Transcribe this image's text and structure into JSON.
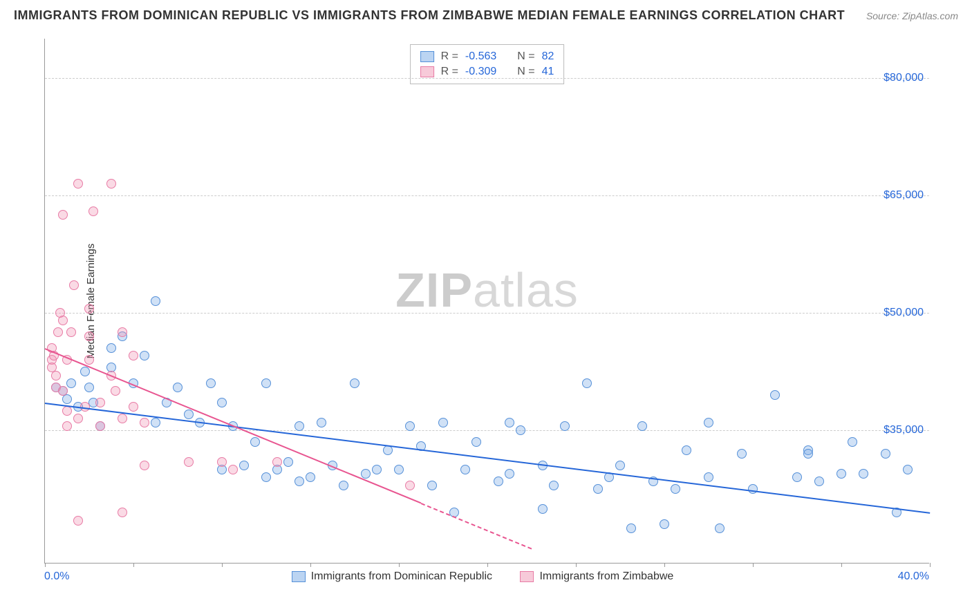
{
  "header": {
    "title": "IMMIGRANTS FROM DOMINICAN REPUBLIC VS IMMIGRANTS FROM ZIMBABWE MEDIAN FEMALE EARNINGS CORRELATION CHART",
    "source_prefix": "Source: ",
    "source": "ZipAtlas.com"
  },
  "watermark": {
    "part1": "ZIP",
    "part2": "atlas"
  },
  "chart": {
    "type": "scatter",
    "ylabel": "Median Female Earnings",
    "xlim": [
      0,
      40
    ],
    "ylim": [
      18000,
      85000
    ],
    "x_tick_labels": [
      "0.0%",
      "40.0%"
    ],
    "x_tick_marks": [
      0,
      4,
      8,
      12,
      16,
      20,
      24,
      28,
      32,
      36,
      40
    ],
    "y_ticks": [
      35000,
      50000,
      65000,
      80000
    ],
    "y_tick_labels": [
      "$35,000",
      "$50,000",
      "$65,000",
      "$80,000"
    ],
    "grid_color": "#cccccc",
    "axis_color": "#999999",
    "background_color": "#ffffff",
    "label_color": "#2566d8",
    "point_radius": 7,
    "point_fill_opacity": 0.35,
    "series": [
      {
        "name": "Immigrants from Dominican Republic",
        "color": "#5590d8",
        "fill": "#78aae6",
        "line_color": "#2566d8",
        "correlation": {
          "r": "-0.563",
          "n": "82"
        },
        "trend": {
          "x1": 0,
          "y1": 38500,
          "x2": 40,
          "y2": 24500,
          "extrapolated_from_x": null
        },
        "points": [
          [
            0.5,
            40500
          ],
          [
            0.8,
            40000
          ],
          [
            1.2,
            41000
          ],
          [
            1.0,
            39000
          ],
          [
            1.5,
            38000
          ],
          [
            1.8,
            42500
          ],
          [
            2.0,
            40500
          ],
          [
            2.2,
            38500
          ],
          [
            2.5,
            35500
          ],
          [
            3.0,
            43000
          ],
          [
            3.0,
            45500
          ],
          [
            3.5,
            47000
          ],
          [
            4.0,
            41000
          ],
          [
            4.5,
            44500
          ],
          [
            5.0,
            51500
          ],
          [
            5.0,
            36000
          ],
          [
            5.5,
            38500
          ],
          [
            6.0,
            40500
          ],
          [
            6.5,
            37000
          ],
          [
            7.0,
            36000
          ],
          [
            7.5,
            41000
          ],
          [
            8.0,
            38500
          ],
          [
            8.0,
            30000
          ],
          [
            8.5,
            35500
          ],
          [
            9.0,
            30500
          ],
          [
            9.5,
            33500
          ],
          [
            10.0,
            41000
          ],
          [
            10.0,
            29000
          ],
          [
            10.5,
            30000
          ],
          [
            11.0,
            31000
          ],
          [
            11.5,
            35500
          ],
          [
            11.5,
            28500
          ],
          [
            12.0,
            29000
          ],
          [
            12.5,
            36000
          ],
          [
            13.0,
            30500
          ],
          [
            13.5,
            28000
          ],
          [
            14.0,
            41000
          ],
          [
            14.5,
            29500
          ],
          [
            15.0,
            30000
          ],
          [
            15.5,
            32500
          ],
          [
            16.0,
            30000
          ],
          [
            16.5,
            35500
          ],
          [
            17.0,
            33000
          ],
          [
            17.5,
            28000
          ],
          [
            18.0,
            36000
          ],
          [
            18.5,
            24500
          ],
          [
            19.0,
            30000
          ],
          [
            19.5,
            33500
          ],
          [
            20.5,
            28500
          ],
          [
            21.0,
            29500
          ],
          [
            21.0,
            36000
          ],
          [
            21.5,
            35000
          ],
          [
            22.5,
            30500
          ],
          [
            22.5,
            25000
          ],
          [
            23.0,
            28000
          ],
          [
            23.5,
            35500
          ],
          [
            24.5,
            41000
          ],
          [
            25.0,
            27500
          ],
          [
            25.5,
            29000
          ],
          [
            26.0,
            30500
          ],
          [
            26.5,
            22500
          ],
          [
            27.0,
            35500
          ],
          [
            27.5,
            28500
          ],
          [
            28.0,
            23000
          ],
          [
            28.5,
            27500
          ],
          [
            29.0,
            32500
          ],
          [
            30.0,
            36000
          ],
          [
            30.0,
            29000
          ],
          [
            30.5,
            22500
          ],
          [
            31.5,
            32000
          ],
          [
            32.0,
            27500
          ],
          [
            33.0,
            39500
          ],
          [
            34.0,
            29000
          ],
          [
            34.5,
            32500
          ],
          [
            34.5,
            32000
          ],
          [
            35.0,
            28500
          ],
          [
            36.0,
            29500
          ],
          [
            36.5,
            33500
          ],
          [
            37.0,
            29500
          ],
          [
            38.0,
            32000
          ],
          [
            38.5,
            24500
          ],
          [
            39.0,
            30000
          ]
        ]
      },
      {
        "name": "Immigrants from Zimbabwe",
        "color": "#e87ba5",
        "fill": "#f096b4",
        "line_color": "#e85590",
        "correlation": {
          "r": "-0.309",
          "n": "41"
        },
        "trend": {
          "x1": 0,
          "y1": 45500,
          "x2": 22,
          "y2": 20000,
          "extrapolated_from_x": 17
        },
        "points": [
          [
            0.3,
            44000
          ],
          [
            0.3,
            43000
          ],
          [
            0.3,
            45500
          ],
          [
            0.4,
            44500
          ],
          [
            0.5,
            40500
          ],
          [
            0.5,
            42000
          ],
          [
            0.6,
            47500
          ],
          [
            0.7,
            50000
          ],
          [
            0.8,
            49000
          ],
          [
            0.8,
            40000
          ],
          [
            0.8,
            62500
          ],
          [
            1.0,
            44000
          ],
          [
            1.0,
            37500
          ],
          [
            1.0,
            35500
          ],
          [
            1.2,
            47500
          ],
          [
            1.3,
            53500
          ],
          [
            1.5,
            23500
          ],
          [
            1.5,
            36500
          ],
          [
            1.5,
            66500
          ],
          [
            1.8,
            38000
          ],
          [
            2.0,
            44000
          ],
          [
            2.0,
            47000
          ],
          [
            2.0,
            50500
          ],
          [
            2.2,
            63000
          ],
          [
            2.5,
            38500
          ],
          [
            2.5,
            35500
          ],
          [
            3.0,
            42000
          ],
          [
            3.0,
            66500
          ],
          [
            3.2,
            40000
          ],
          [
            3.5,
            47500
          ],
          [
            3.5,
            36500
          ],
          [
            3.5,
            24500
          ],
          [
            4.0,
            38000
          ],
          [
            4.0,
            44500
          ],
          [
            4.5,
            36000
          ],
          [
            4.5,
            30500
          ],
          [
            6.5,
            31000
          ],
          [
            8.0,
            31000
          ],
          [
            8.5,
            30000
          ],
          [
            10.5,
            31000
          ],
          [
            16.5,
            28000
          ]
        ]
      }
    ],
    "legend_top": {
      "r_label": "R =",
      "n_label": "N ="
    },
    "legend_bottom": {
      "items": [
        "Immigrants from Dominican Republic",
        "Immigrants from Zimbabwe"
      ]
    }
  }
}
